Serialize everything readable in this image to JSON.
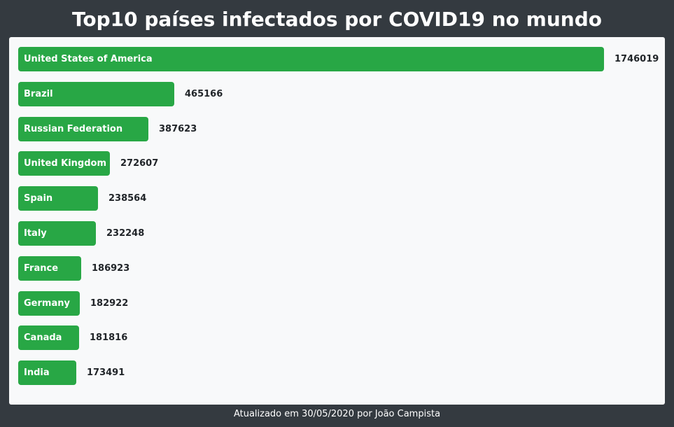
{
  "header": {
    "title": "Top10 países infectados por COVID19 no mundo"
  },
  "chart_data": {
    "type": "bar",
    "orientation": "horizontal",
    "title": "Top10 países infectados por COVID19 no mundo",
    "categories": [
      "United States of America",
      "Brazil",
      "Russian Federation",
      "United Kingdom",
      "Spain",
      "Italy",
      "France",
      "Germany",
      "Canada",
      "India"
    ],
    "values": [
      1746019,
      465166,
      387623,
      272607,
      238564,
      232248,
      186923,
      182922,
      181816,
      173491
    ],
    "value_labels": [
      "1746019",
      "465166",
      "387623",
      "272607",
      "238564",
      "232248",
      "186923",
      "182922",
      "181816",
      "173491"
    ],
    "grid": false,
    "legend": "none",
    "bar_color": "#28a745"
  },
  "footer": {
    "text": "Atualizado em 30/05/2020 por João Campista"
  },
  "colors": {
    "background": "#343a40",
    "panel": "#f8f9fa",
    "bar": "#28a745",
    "title_text": "#ffffff",
    "value_text": "#212529"
  }
}
